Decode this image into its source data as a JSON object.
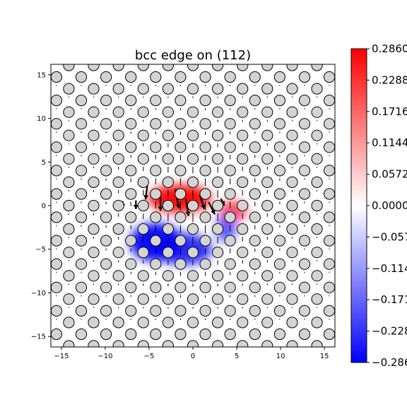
{
  "chart_data": {
    "type": "heatmap",
    "title": "bcc edge on (112)",
    "xlabel": "",
    "ylabel": "",
    "xlim": [
      -16.2,
      16.2
    ],
    "ylim": [
      -16.2,
      16.2
    ],
    "x_ticks": [
      -15,
      -10,
      -5,
      0,
      5,
      10,
      15
    ],
    "y_ticks": [
      -15,
      -10,
      -5,
      0,
      5,
      10,
      15
    ],
    "x_tick_labels": [
      "−15",
      "−10",
      "−5",
      "0",
      "5",
      "10",
      "15"
    ],
    "y_tick_labels": [
      "−15",
      "−10",
      "−5",
      "0",
      "5",
      "10",
      "15"
    ],
    "colormap": "bwr",
    "colors": {
      "negative": "#0000ff",
      "zero": "#ffffff",
      "positive": "#ff0000",
      "atom_fill": "#d3d3d3",
      "atom_edge": "#000000"
    },
    "colorbar": {
      "range": [
        -0.286,
        0.286
      ],
      "ticks": [
        0.286,
        0.2288,
        0.1716,
        0.1144,
        0.0572,
        0.0,
        -0.0572,
        -0.1144,
        -0.1716,
        -0.2288,
        -0.286
      ],
      "tick_labels": [
        "0.2860",
        "0.2288",
        "0.1716",
        "0.1144",
        "0.0572",
        "0.0000",
        "−0.0572",
        "−0.1144",
        "−0.1716",
        "−0.2288",
        "−0.2860"
      ]
    },
    "lattice": {
      "a1": [
        2.83,
        0
      ],
      "a2": [
        1.415,
        1.34
      ],
      "origin": [
        0,
        0
      ]
    },
    "strain_field": [
      {
        "sign": "positive",
        "center": [
          -1.5,
          0.8
        ],
        "spread": [
          3.6,
          1.6
        ],
        "peak": 0.286
      },
      {
        "sign": "positive",
        "center": [
          4.6,
          -0.6
        ],
        "spread": [
          1.6,
          1.2
        ],
        "peak": 0.16
      },
      {
        "sign": "negative",
        "center": [
          -4.2,
          -4.2
        ],
        "spread": [
          3.0,
          2.2
        ],
        "peak": -0.286
      },
      {
        "sign": "negative",
        "center": [
          -1.0,
          -5.0
        ],
        "spread": [
          3.2,
          1.8
        ],
        "peak": -0.22
      },
      {
        "sign": "negative",
        "center": [
          3.8,
          -2.6
        ],
        "spread": [
          1.2,
          1.6
        ],
        "peak": -0.14
      }
    ],
    "displacement_arrows": [
      {
        "x": -2.0,
        "y": 1.9,
        "dx": 0.4,
        "dy": -2.2
      },
      {
        "x": -3.7,
        "y": 1.0,
        "dx": 0.0,
        "dy": -1.6
      },
      {
        "x": -5.2,
        "y": 2.3,
        "dx": -0.2,
        "dy": -1.6
      },
      {
        "x": -0.8,
        "y": 0.8,
        "dx": 0.3,
        "dy": -2.0
      },
      {
        "x": 0.8,
        "y": 1.2,
        "dx": 0.5,
        "dy": -1.6
      },
      {
        "x": 1.8,
        "y": 0.4,
        "dx": 0.7,
        "dy": -1.4
      },
      {
        "x": 3.2,
        "y": 0.8,
        "dx": 0.4,
        "dy": -0.8
      },
      {
        "x": -6.5,
        "y": 0.6,
        "dx": 0.0,
        "dy": -1.0
      },
      {
        "x": -8.0,
        "y": 0.5,
        "dx": 0.0,
        "dy": -0.8
      }
    ]
  }
}
